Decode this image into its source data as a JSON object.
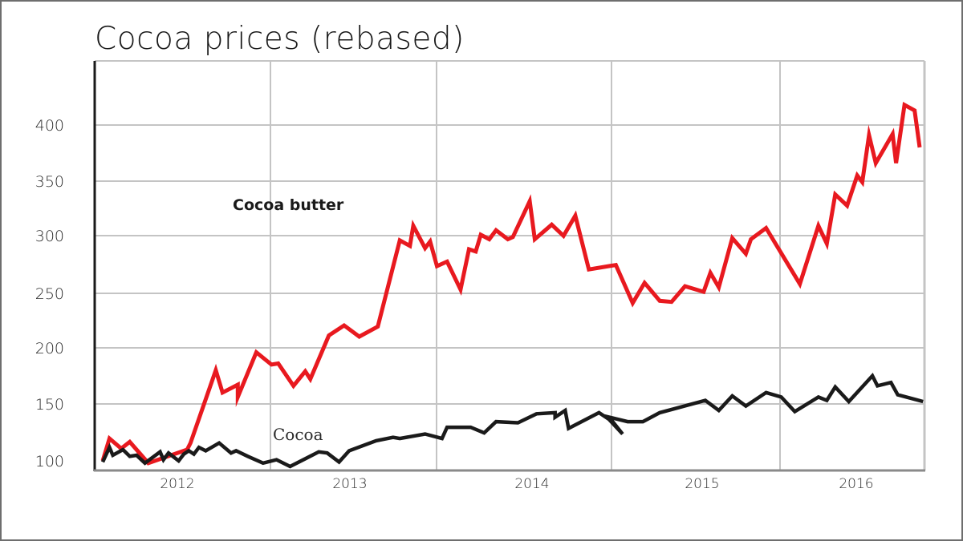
{
  "chart_data": {
    "type": "line",
    "title": "Cocoa prices (rebased)",
    "xlabel": "",
    "ylabel": "",
    "ylim": [
      95,
      425
    ],
    "yticks": [
      100,
      150,
      200,
      250,
      300,
      350,
      400
    ],
    "xticks": [
      "2012",
      "2013",
      "2014",
      "2015",
      "2016"
    ],
    "grid": true,
    "legend": "inline labels",
    "x_range": [
      "mid-2011",
      "mid-2016"
    ],
    "series": [
      {
        "name": "Cocoa butter",
        "color": "#e8191f",
        "label_position": "annotation above line, mid-2012",
        "points": [
          {
            "x": 2011.62,
            "y": 100
          },
          {
            "x": 2011.66,
            "y": 120
          },
          {
            "x": 2011.73,
            "y": 111
          },
          {
            "x": 2011.78,
            "y": 117
          },
          {
            "x": 2011.89,
            "y": 98
          },
          {
            "x": 2012.12,
            "y": 110
          },
          {
            "x": 2012.14,
            "y": 116
          },
          {
            "x": 2012.29,
            "y": 181
          },
          {
            "x": 2012.33,
            "y": 161
          },
          {
            "x": 2012.42,
            "y": 168
          },
          {
            "x": 2012.42,
            "y": 157
          },
          {
            "x": 2012.53,
            "y": 197
          },
          {
            "x": 2012.62,
            "y": 186
          },
          {
            "x": 2012.66,
            "y": 187
          },
          {
            "x": 2012.75,
            "y": 167
          },
          {
            "x": 2012.82,
            "y": 180
          },
          {
            "x": 2012.85,
            "y": 173
          },
          {
            "x": 2012.96,
            "y": 212
          },
          {
            "x": 2013.05,
            "y": 221
          },
          {
            "x": 2013.14,
            "y": 211
          },
          {
            "x": 2013.25,
            "y": 220
          },
          {
            "x": 2013.38,
            "y": 297
          },
          {
            "x": 2013.44,
            "y": 292
          },
          {
            "x": 2013.46,
            "y": 310
          },
          {
            "x": 2013.53,
            "y": 290
          },
          {
            "x": 2013.56,
            "y": 296
          },
          {
            "x": 2013.6,
            "y": 274
          },
          {
            "x": 2013.66,
            "y": 278
          },
          {
            "x": 2013.74,
            "y": 253
          },
          {
            "x": 2013.79,
            "y": 289
          },
          {
            "x": 2013.83,
            "y": 287
          },
          {
            "x": 2013.86,
            "y": 302
          },
          {
            "x": 2013.91,
            "y": 298
          },
          {
            "x": 2013.95,
            "y": 306
          },
          {
            "x": 2014.02,
            "y": 298
          },
          {
            "x": 2014.05,
            "y": 300
          },
          {
            "x": 2014.15,
            "y": 332
          },
          {
            "x": 2014.18,
            "y": 298
          },
          {
            "x": 2014.28,
            "y": 311
          },
          {
            "x": 2014.35,
            "y": 301
          },
          {
            "x": 2014.42,
            "y": 319
          },
          {
            "x": 2014.5,
            "y": 271
          },
          {
            "x": 2014.66,
            "y": 275
          },
          {
            "x": 2014.76,
            "y": 241
          },
          {
            "x": 2014.83,
            "y": 259
          },
          {
            "x": 2014.92,
            "y": 243
          },
          {
            "x": 2014.99,
            "y": 242
          },
          {
            "x": 2015.07,
            "y": 256
          },
          {
            "x": 2015.18,
            "y": 251
          },
          {
            "x": 2015.22,
            "y": 268
          },
          {
            "x": 2015.27,
            "y": 255
          },
          {
            "x": 2015.35,
            "y": 299
          },
          {
            "x": 2015.43,
            "y": 285
          },
          {
            "x": 2015.46,
            "y": 298
          },
          {
            "x": 2015.55,
            "y": 308
          },
          {
            "x": 2015.75,
            "y": 258
          },
          {
            "x": 2015.86,
            "y": 310
          },
          {
            "x": 2015.91,
            "y": 294
          },
          {
            "x": 2015.96,
            "y": 338
          },
          {
            "x": 2016.03,
            "y": 328
          },
          {
            "x": 2016.09,
            "y": 355
          },
          {
            "x": 2016.12,
            "y": 349
          },
          {
            "x": 2016.16,
            "y": 391
          },
          {
            "x": 2016.2,
            "y": 366
          },
          {
            "x": 2016.3,
            "y": 392
          },
          {
            "x": 2016.32,
            "y": 366
          },
          {
            "x": 2016.37,
            "y": 418
          },
          {
            "x": 2016.43,
            "y": 413
          },
          {
            "x": 2016.46,
            "y": 380
          }
        ]
      },
      {
        "name": "Cocoa",
        "color": "#1a1a1a",
        "label_position": "annotation above line, early 2013",
        "points": [
          {
            "x": 2011.62,
            "y": 99
          },
          {
            "x": 2011.66,
            "y": 112
          },
          {
            "x": 2011.68,
            "y": 105
          },
          {
            "x": 2011.74,
            "y": 110
          },
          {
            "x": 2011.78,
            "y": 104
          },
          {
            "x": 2011.82,
            "y": 105
          },
          {
            "x": 2011.87,
            "y": 98
          },
          {
            "x": 2011.96,
            "y": 108
          },
          {
            "x": 2011.98,
            "y": 101
          },
          {
            "x": 2012.01,
            "y": 107
          },
          {
            "x": 2012.07,
            "y": 100
          },
          {
            "x": 2012.1,
            "y": 106
          },
          {
            "x": 2012.13,
            "y": 109
          },
          {
            "x": 2012.16,
            "y": 106
          },
          {
            "x": 2012.19,
            "y": 112
          },
          {
            "x": 2012.23,
            "y": 109
          },
          {
            "x": 2012.31,
            "y": 116
          },
          {
            "x": 2012.38,
            "y": 107
          },
          {
            "x": 2012.41,
            "y": 109
          },
          {
            "x": 2012.48,
            "y": 104
          },
          {
            "x": 2012.57,
            "y": 98
          },
          {
            "x": 2012.65,
            "y": 101
          },
          {
            "x": 2012.73,
            "y": 95
          },
          {
            "x": 2012.9,
            "y": 108
          },
          {
            "x": 2012.95,
            "y": 107
          },
          {
            "x": 2013.02,
            "y": 99
          },
          {
            "x": 2013.08,
            "y": 109
          },
          {
            "x": 2013.24,
            "y": 118
          },
          {
            "x": 2013.34,
            "y": 121
          },
          {
            "x": 2013.38,
            "y": 120
          },
          {
            "x": 2013.53,
            "y": 124
          },
          {
            "x": 2013.63,
            "y": 120
          },
          {
            "x": 2013.66,
            "y": 130
          },
          {
            "x": 2013.8,
            "y": 130
          },
          {
            "x": 2013.88,
            "y": 125
          },
          {
            "x": 2013.95,
            "y": 135
          },
          {
            "x": 2014.08,
            "y": 134
          },
          {
            "x": 2014.19,
            "y": 142
          },
          {
            "x": 2014.3,
            "y": 143
          },
          {
            "x": 2014.3,
            "y": 139
          },
          {
            "x": 2014.36,
            "y": 145
          },
          {
            "x": 2014.38,
            "y": 129
          },
          {
            "x": 2014.56,
            "y": 143
          },
          {
            "x": 2014.62,
            "y": 137
          },
          {
            "x": 2014.7,
            "y": 124
          },
          {
            "x": 2014.62,
            "y": 139
          },
          {
            "x": 2014.73,
            "y": 135
          },
          {
            "x": 2014.82,
            "y": 135
          },
          {
            "x": 2014.92,
            "y": 143
          },
          {
            "x": 2015.19,
            "y": 154
          },
          {
            "x": 2015.27,
            "y": 145
          },
          {
            "x": 2015.35,
            "y": 158
          },
          {
            "x": 2015.43,
            "y": 149
          },
          {
            "x": 2015.55,
            "y": 161
          },
          {
            "x": 2015.64,
            "y": 157
          },
          {
            "x": 2015.72,
            "y": 144
          },
          {
            "x": 2015.86,
            "y": 157
          },
          {
            "x": 2015.91,
            "y": 154
          },
          {
            "x": 2015.96,
            "y": 166
          },
          {
            "x": 2016.04,
            "y": 153
          },
          {
            "x": 2016.18,
            "y": 176
          },
          {
            "x": 2016.21,
            "y": 167
          },
          {
            "x": 2016.29,
            "y": 170
          },
          {
            "x": 2016.33,
            "y": 159
          },
          {
            "x": 2016.48,
            "y": 153
          }
        ]
      }
    ]
  },
  "labels": {
    "title": "Cocoa prices (rebased)",
    "series_butter": "Cocoa butter",
    "series_cocoa": "Cocoa",
    "yticks": [
      "400",
      "350",
      "300",
      "250",
      "200",
      "150",
      "100"
    ],
    "xticks": [
      "2012",
      "2013",
      "2014",
      "2015",
      "2016"
    ]
  },
  "colors": {
    "butter": "#e8191f",
    "cocoa": "#1a1a1a",
    "grid": "#c4c4c4",
    "axis": "#1a1a1a",
    "frame": "#6e6e6e"
  }
}
